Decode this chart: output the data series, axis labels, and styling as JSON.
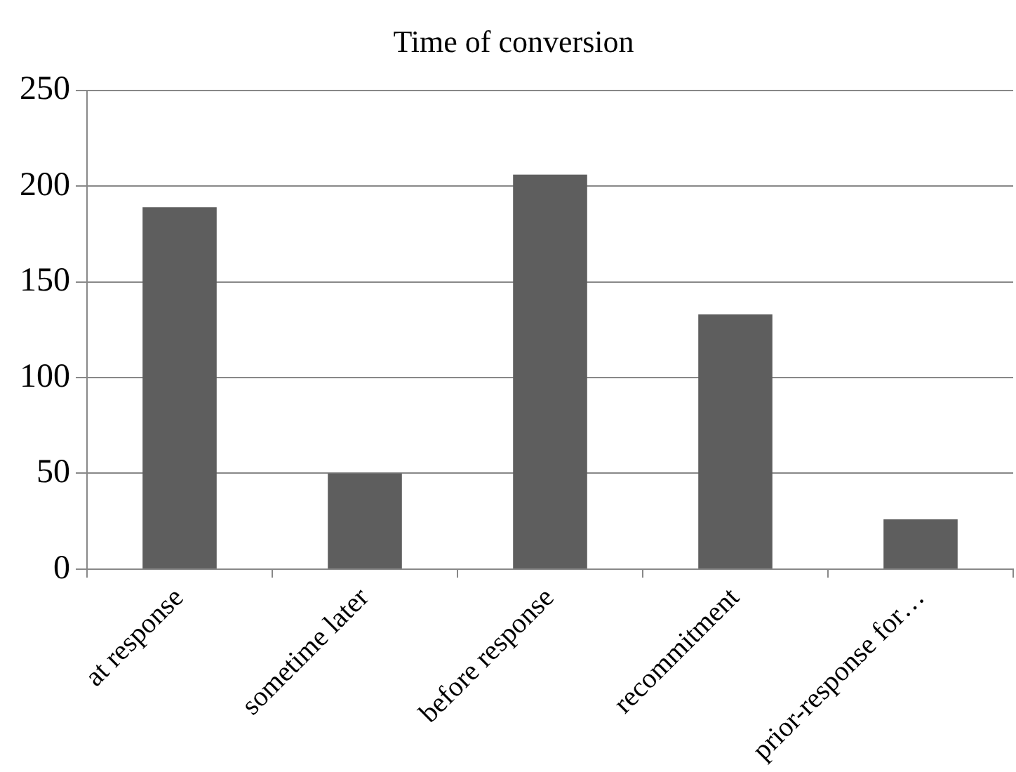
{
  "chart_data": {
    "type": "bar",
    "title": "Time of conversion",
    "categories": [
      "at response",
      "sometime later",
      "before response",
      "recommitment",
      "prior-response for…"
    ],
    "values": [
      189,
      50,
      206,
      133,
      26
    ],
    "color": "#5e5e5e",
    "ylim": [
      0,
      250
    ],
    "yticks": [
      0,
      50,
      100,
      150,
      200,
      250
    ],
    "grid": "y",
    "legend": false
  }
}
